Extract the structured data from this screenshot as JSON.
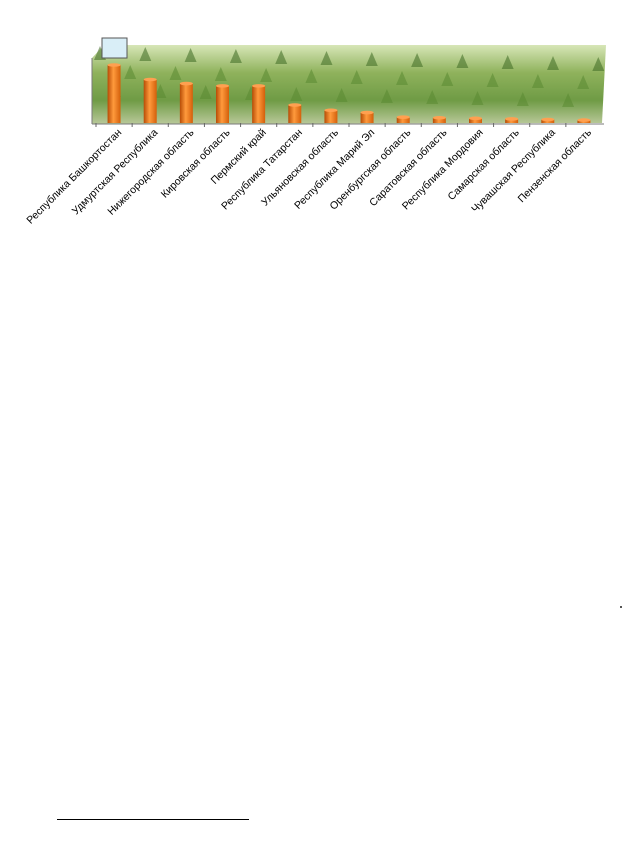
{
  "chart_data": {
    "type": "bar",
    "title": "",
    "xlabel": "",
    "ylabel": "",
    "ylim": [
      0,
      100
    ],
    "grid": false,
    "legend": "none",
    "categories": [
      "Республика Башкортостан",
      "Удмуртская Республика",
      "Нижегородская область",
      "Кировская область",
      "Пермский край",
      "Республика Татарстан",
      "Ульяновская область",
      "Республика Марий Эл",
      "Оренбургская область",
      "Саратовская область",
      "Республика Мордовия",
      "Самарская область",
      "Чувашская Республика",
      "Пензенская область"
    ],
    "values": [
      100,
      75,
      68,
      64,
      64,
      31,
      22,
      18,
      10,
      9,
      8,
      7,
      6,
      5
    ],
    "colors": {
      "bar": "#e86a10",
      "bar_highlight": "#ffa050",
      "legend_box": "#d9eef7"
    }
  }
}
